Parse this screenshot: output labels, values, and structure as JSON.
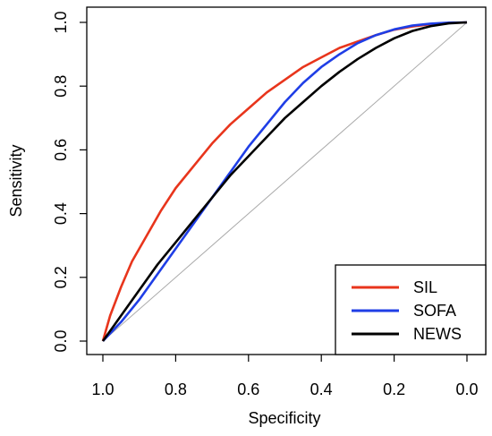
{
  "chart_data": {
    "type": "line",
    "title": "",
    "xlabel": "Specificity",
    "ylabel": "Sensitivity",
    "xlim": [
      1.0,
      0.0
    ],
    "ylim": [
      0.0,
      1.0
    ],
    "x_reversed": true,
    "x_ticks": [
      1.0,
      0.8,
      0.6,
      0.4,
      0.2,
      0.0
    ],
    "x_tick_labels": [
      "1.0",
      "0.8",
      "0.6",
      "0.4",
      "0.2",
      "0.0"
    ],
    "y_ticks": [
      0.0,
      0.2,
      0.4,
      0.6,
      0.8,
      1.0
    ],
    "y_tick_labels": [
      "0.0",
      "0.2",
      "0.4",
      "0.6",
      "0.8",
      "1.0"
    ],
    "grid": false,
    "legend_position": "bottom-right",
    "reference_line": {
      "from": [
        1.0,
        0.0
      ],
      "to": [
        0.0,
        1.0
      ],
      "color": "#aaaaaa"
    },
    "series": [
      {
        "name": "SIL",
        "color": "#e8351c",
        "points": [
          [
            1.0,
            0.0
          ],
          [
            0.98,
            0.08
          ],
          [
            0.95,
            0.17
          ],
          [
            0.92,
            0.25
          ],
          [
            0.88,
            0.33
          ],
          [
            0.84,
            0.41
          ],
          [
            0.8,
            0.48
          ],
          [
            0.75,
            0.55
          ],
          [
            0.7,
            0.62
          ],
          [
            0.65,
            0.68
          ],
          [
            0.6,
            0.73
          ],
          [
            0.55,
            0.78
          ],
          [
            0.5,
            0.82
          ],
          [
            0.45,
            0.86
          ],
          [
            0.4,
            0.89
          ],
          [
            0.35,
            0.92
          ],
          [
            0.3,
            0.94
          ],
          [
            0.25,
            0.96
          ],
          [
            0.2,
            0.977
          ],
          [
            0.15,
            0.987
          ],
          [
            0.1,
            0.994
          ],
          [
            0.05,
            0.998
          ],
          [
            0.0,
            1.0
          ]
        ]
      },
      {
        "name": "SOFA",
        "color": "#1f3ee6",
        "points": [
          [
            1.0,
            0.0
          ],
          [
            0.95,
            0.06
          ],
          [
            0.9,
            0.13
          ],
          [
            0.85,
            0.21
          ],
          [
            0.8,
            0.29
          ],
          [
            0.75,
            0.37
          ],
          [
            0.7,
            0.45
          ],
          [
            0.65,
            0.53
          ],
          [
            0.6,
            0.61
          ],
          [
            0.55,
            0.68
          ],
          [
            0.5,
            0.75
          ],
          [
            0.45,
            0.81
          ],
          [
            0.4,
            0.86
          ],
          [
            0.35,
            0.9
          ],
          [
            0.3,
            0.935
          ],
          [
            0.25,
            0.96
          ],
          [
            0.2,
            0.978
          ],
          [
            0.15,
            0.99
          ],
          [
            0.1,
            0.996
          ],
          [
            0.05,
            0.999
          ],
          [
            0.0,
            1.0
          ]
        ]
      },
      {
        "name": "NEWS",
        "color": "#000000",
        "points": [
          [
            1.0,
            0.0
          ],
          [
            0.95,
            0.08
          ],
          [
            0.9,
            0.16
          ],
          [
            0.85,
            0.24
          ],
          [
            0.8,
            0.31
          ],
          [
            0.75,
            0.38
          ],
          [
            0.7,
            0.45
          ],
          [
            0.65,
            0.52
          ],
          [
            0.6,
            0.58
          ],
          [
            0.55,
            0.64
          ],
          [
            0.5,
            0.7
          ],
          [
            0.45,
            0.75
          ],
          [
            0.4,
            0.8
          ],
          [
            0.35,
            0.845
          ],
          [
            0.3,
            0.885
          ],
          [
            0.25,
            0.92
          ],
          [
            0.2,
            0.95
          ],
          [
            0.15,
            0.973
          ],
          [
            0.1,
            0.988
          ],
          [
            0.05,
            0.997
          ],
          [
            0.0,
            1.0
          ]
        ]
      }
    ]
  }
}
